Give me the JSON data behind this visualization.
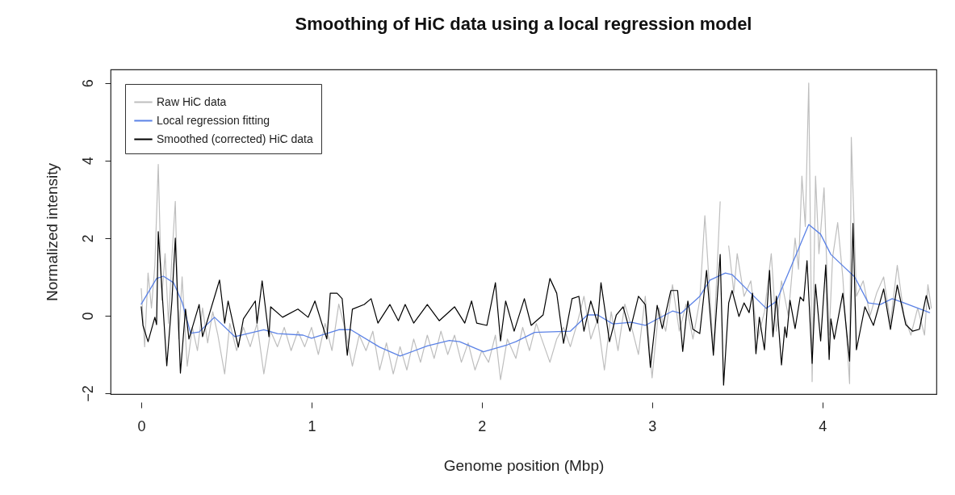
{
  "chart_data": {
    "type": "line",
    "title": "Smoothing of HiC data using a local regression model",
    "xlabel": "Genome position (Mbp)",
    "ylabel": "Normalized intensity",
    "xlim": [
      -0.18,
      4.67
    ],
    "ylim": [
      -2.02,
      6.35
    ],
    "xticks": [
      0,
      1,
      2,
      3,
      4
    ],
    "yticks": [
      -2,
      0,
      2,
      4,
      6
    ],
    "legend": "top left",
    "series": [
      {
        "name": "Raw HiC data",
        "color": "#bebebe",
        "x": [
          0,
          0.02,
          0.04,
          0.06,
          0.08,
          0.1,
          0.12,
          0.14,
          0.16,
          0.18,
          0.2,
          0.22,
          0.24,
          0.27,
          0.3,
          0.33,
          0.36,
          0.39,
          0.42,
          0.45,
          0.49,
          0.52,
          0.56,
          0.6,
          0.64,
          0.68,
          0.72,
          0.76,
          0.8,
          0.84,
          0.88,
          0.92,
          0.96,
          1.0,
          1.04,
          1.08,
          1.12,
          1.16,
          1.2,
          1.24,
          1.28,
          1.32,
          1.36,
          1.4,
          1.44,
          1.48,
          1.52,
          1.56,
          1.6,
          1.64,
          1.68,
          1.72,
          1.76,
          1.8,
          1.84,
          1.88,
          1.92,
          1.96,
          2.0,
          2.04,
          2.08,
          2.11,
          2.15,
          2.2,
          2.24,
          2.28,
          2.32,
          2.36,
          2.4,
          2.44,
          2.48,
          2.52,
          2.56,
          2.6,
          2.64,
          2.68,
          2.72,
          2.76,
          2.8,
          2.84,
          2.88,
          2.92,
          2.96,
          3.0,
          3.04,
          3.08,
          3.12,
          3.16,
          3.2,
          3.24,
          3.28,
          3.31,
          3.33,
          3.36,
          3.4,
          3.42,
          3.45,
          3.48,
          3.5,
          3.54,
          3.58,
          3.62,
          3.66,
          3.7,
          3.73,
          3.76,
          3.8,
          3.84,
          3.86,
          3.88,
          3.9,
          3.92,
          3.94,
          3.96,
          3.98,
          4.01,
          4.04,
          4.06,
          4.09,
          4.12,
          4.16,
          4.17,
          4.2,
          4.24,
          4.28,
          4.32,
          4.36,
          4.4,
          4.44,
          4.48,
          4.52,
          4.56,
          4.6,
          4.62,
          4.64
        ],
        "values": [
          0.7,
          -0.8,
          1.1,
          0.2,
          1.3,
          3.9,
          0.4,
          1.6,
          -0.2,
          1.5,
          2.95,
          -0.6,
          1.0,
          -1.3,
          -0.3,
          -0.9,
          0.2,
          -0.7,
          0.1,
          -0.5,
          -1.5,
          -0.2,
          -0.9,
          -0.3,
          -0.8,
          -0.2,
          -1.5,
          -0.4,
          -0.8,
          -0.3,
          -0.9,
          -0.4,
          -0.8,
          -0.3,
          -1.0,
          -0.2,
          -0.9,
          0.3,
          -0.4,
          -1.3,
          -0.5,
          -0.9,
          -0.4,
          -1.4,
          -0.7,
          -1.5,
          -0.8,
          -1.4,
          -0.6,
          -1.2,
          -0.5,
          -1.1,
          -0.4,
          -1.0,
          -0.5,
          -1.2,
          -0.7,
          -1.4,
          -0.9,
          -1.2,
          -0.5,
          -1.65,
          -0.6,
          -1.1,
          -0.3,
          -0.9,
          -0.2,
          -0.7,
          -1.2,
          -0.6,
          -0.3,
          -0.8,
          -0.2,
          0.5,
          -0.6,
          -0.1,
          -1.4,
          0.1,
          -0.9,
          0.3,
          -0.3,
          -1.0,
          0.5,
          -1.6,
          0.2,
          -0.4,
          0.8,
          -0.4,
          0.3,
          -0.6,
          0.4,
          2.58,
          1.2,
          -0.9,
          2.94,
          null,
          1.8,
          0.6,
          1.6,
          0.5,
          0.9,
          -0.6,
          0.1,
          1.6,
          -0.4,
          0.9,
          0.0,
          2.0,
          1.2,
          3.6,
          2.3,
          6.0,
          -1.7,
          3.6,
          1.6,
          3.3,
          -0.5,
          1.5,
          2.4,
          1.0,
          -1.75,
          4.6,
          0.5,
          0.9,
          0.0,
          0.6,
          1.0,
          -0.2,
          1.3,
          0.0,
          -0.5,
          0.2,
          -0.5,
          0.8,
          0.2
        ]
      },
      {
        "name": "Local regression fitting",
        "color": "#5b82e6",
        "x": [
          0,
          0.09,
          0.13,
          0.19,
          0.24,
          0.29,
          0.34,
          0.43,
          0.55,
          0.72,
          0.8,
          0.95,
          1.0,
          1.16,
          1.23,
          1.4,
          1.52,
          1.68,
          1.81,
          1.87,
          2.01,
          2.15,
          2.2,
          2.31,
          2.52,
          2.62,
          2.68,
          2.77,
          2.88,
          2.96,
          3.12,
          3.17,
          3.28,
          3.34,
          3.43,
          3.47,
          3.58,
          3.67,
          3.73,
          3.85,
          3.92,
          3.99,
          4.05,
          4.11,
          4.19,
          4.27,
          4.34,
          4.41,
          4.48,
          4.63
        ],
        "values": [
          0.3,
          0.96,
          1.02,
          0.85,
          0.35,
          -0.45,
          -0.42,
          -0.04,
          -0.54,
          -0.36,
          -0.46,
          -0.5,
          -0.58,
          -0.36,
          -0.36,
          -0.81,
          -1.04,
          -0.78,
          -0.64,
          -0.67,
          -0.93,
          -0.75,
          -0.67,
          -0.43,
          -0.4,
          0.02,
          0.02,
          -0.21,
          -0.17,
          -0.25,
          0.12,
          0.06,
          0.5,
          0.92,
          1.1,
          1.06,
          0.58,
          0.19,
          0.37,
          1.62,
          2.35,
          2.1,
          1.58,
          1.33,
          1.0,
          0.33,
          0.29,
          0.44,
          0.33,
          0.08
        ]
      },
      {
        "name": "Smoothed (corrected) HiC data",
        "color": "#000000",
        "x": [
          0,
          0.01,
          0.04,
          0.08,
          0.09,
          0.1,
          0.15,
          0.18,
          0.2,
          0.23,
          0.26,
          0.28,
          0.34,
          0.36,
          0.46,
          0.49,
          0.51,
          0.57,
          0.6,
          0.67,
          0.68,
          0.71,
          0.75,
          0.76,
          0.83,
          0.92,
          0.98,
          1.02,
          1.06,
          1.09,
          1.11,
          1.15,
          1.18,
          1.21,
          1.24,
          1.31,
          1.35,
          1.39,
          1.46,
          1.51,
          1.55,
          1.6,
          1.68,
          1.75,
          1.84,
          1.9,
          1.94,
          1.97,
          2.03,
          2.08,
          2.11,
          2.14,
          2.19,
          2.25,
          2.29,
          2.36,
          2.4,
          2.44,
          2.48,
          2.53,
          2.57,
          2.6,
          2.64,
          2.68,
          2.7,
          2.75,
          2.79,
          2.83,
          2.87,
          2.92,
          2.96,
          2.99,
          3.03,
          3.06,
          3.11,
          3.15,
          3.18,
          3.21,
          3.24,
          3.28,
          3.32,
          3.36,
          3.4,
          3.42,
          3.45,
          3.47,
          3.51,
          3.54,
          3.57,
          3.59,
          3.61,
          3.63,
          3.66,
          3.69,
          3.71,
          3.73,
          3.76,
          3.78,
          3.79,
          3.81,
          3.84,
          3.87,
          3.89,
          3.91,
          3.94,
          3.96,
          3.99,
          4.02,
          4.04,
          4.05,
          4.07,
          4.12,
          4.16,
          4.18,
          4.2,
          4.25,
          4.3,
          4.36,
          4.4,
          4.44,
          4.49,
          4.53,
          4.57,
          4.61,
          4.63
        ],
        "values": [
          0.23,
          -0.25,
          -0.67,
          -0.04,
          -0.23,
          2.17,
          -1.29,
          0.38,
          2.0,
          -1.48,
          0.17,
          -0.6,
          0.29,
          -0.54,
          0.92,
          -0.19,
          0.38,
          -0.81,
          -0.08,
          0.38,
          -0.19,
          0.9,
          -0.54,
          0.23,
          -0.04,
          0.17,
          -0.04,
          0.38,
          -0.19,
          -0.6,
          0.58,
          0.58,
          0.44,
          -1.02,
          0.17,
          0.29,
          0.44,
          -0.19,
          0.29,
          -0.13,
          0.29,
          -0.19,
          0.29,
          -0.13,
          0.23,
          -0.19,
          0.38,
          -0.19,
          -0.25,
          0.85,
          -0.65,
          0.38,
          -0.4,
          0.44,
          -0.25,
          0.02,
          0.96,
          0.58,
          -0.71,
          0.44,
          0.5,
          -0.4,
          0.38,
          -0.19,
          0.85,
          -0.67,
          0.02,
          0.23,
          -0.4,
          0.5,
          0.29,
          -1.33,
          0.27,
          -0.33,
          0.65,
          0.65,
          -0.92,
          0.38,
          -0.35,
          -0.46,
          1.17,
          -1.02,
          1.58,
          -1.79,
          0.33,
          0.65,
          -0.02,
          0.33,
          0.08,
          0.58,
          -0.98,
          -0.04,
          -0.88,
          1.17,
          -0.54,
          0.5,
          -1.27,
          -0.29,
          -0.56,
          0.4,
          -0.33,
          0.48,
          0.38,
          1.42,
          -1.23,
          0.81,
          -0.65,
          1.31,
          -1.13,
          -0.08,
          -0.6,
          0.58,
          -1.17,
          2.38,
          -0.88,
          0.23,
          -0.25,
          0.69,
          -0.35,
          0.79,
          -0.23,
          -0.4,
          -0.35,
          0.52,
          0.17
        ]
      }
    ]
  }
}
